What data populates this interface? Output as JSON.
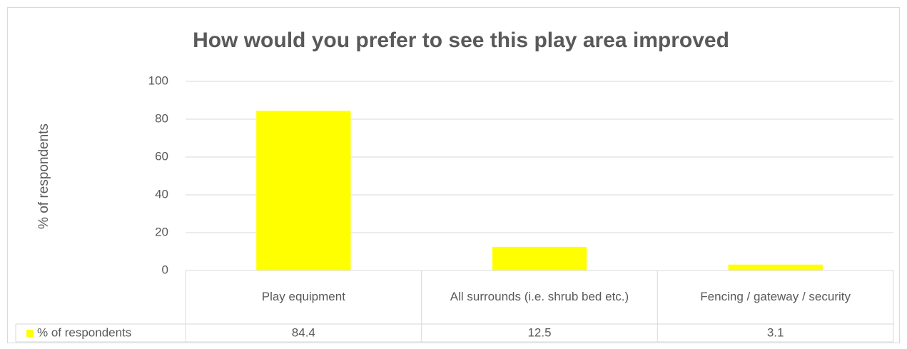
{
  "chart_data": {
    "type": "bar",
    "title": "How would you prefer to see this play area improved",
    "y_label": "% of respondents",
    "categories": [
      "Play equipment",
      "All surrounds (i.e. shrub bed etc.)",
      "Fencing / gateway / security"
    ],
    "series": [
      {
        "name": "% of respondents",
        "color": "#ffff00",
        "values": [
          84.4,
          12.5,
          3.1
        ]
      }
    ],
    "ylim": [
      0,
      100
    ],
    "yticks": [
      0,
      20,
      40,
      60,
      80,
      100
    ],
    "grid": true,
    "data_table": true
  }
}
